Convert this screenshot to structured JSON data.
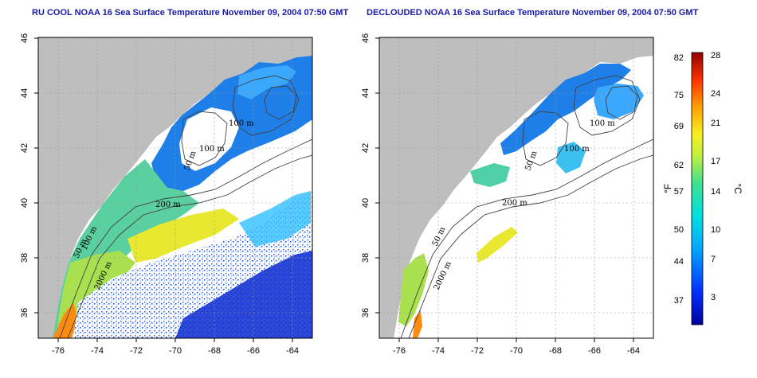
{
  "titles": {
    "left": "RU COOL NOAA 16 Sea Surface Temperature November 09, 2004 07:50 GMT",
    "right": "DECLOUDED NOAA 16 Sea Surface Temperature November 09, 2004 07:50 GMT"
  },
  "axes": {
    "lon_labels": [
      "-76",
      "-74",
      "-72",
      "-70",
      "-68",
      "-66",
      "-64"
    ],
    "lat_labels": [
      "46",
      "44",
      "42",
      "40",
      "38",
      "36"
    ]
  },
  "contours": {
    "left": [
      "100 m",
      "100 m",
      "50 m",
      "200 m",
      "50 m",
      "100 m",
      "2000 m"
    ],
    "right": [
      "100 m",
      "100 m",
      "50 m",
      "200 m",
      "50 m",
      "2000 m"
    ]
  },
  "colorbar": {
    "fahrenheit_labels": [
      "82",
      "75",
      "69",
      "62",
      "57",
      "50",
      "44",
      "37"
    ],
    "celsius_labels": [
      "28",
      "24",
      "21",
      "17",
      "14",
      "10",
      "7",
      "3"
    ],
    "f_unit": "°F",
    "c_unit": "°C"
  },
  "colors": {
    "title": "#1a1aa8",
    "land": "#bebebe",
    "water_no_data": "#ffffff",
    "contour": "#404040",
    "grid": "#9a9a9a"
  }
}
